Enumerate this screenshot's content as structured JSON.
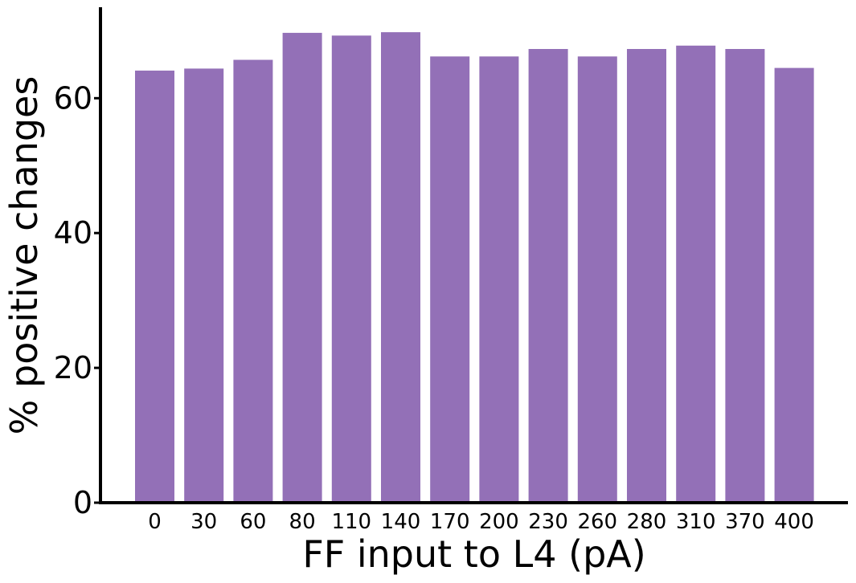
{
  "chart_data": {
    "type": "bar",
    "categories": [
      "0",
      "30",
      "60",
      "80",
      "110",
      "140",
      "170",
      "200",
      "230",
      "260",
      "280",
      "310",
      "370",
      "400"
    ],
    "values": [
      64.1,
      64.4,
      65.7,
      69.7,
      69.3,
      69.8,
      66.2,
      66.2,
      67.3,
      66.2,
      67.3,
      67.8,
      67.3,
      64.5
    ],
    "xlabel": "FF input to L4 (pA)",
    "ylabel": "% positive changes",
    "ylim": [
      0,
      73.5
    ],
    "yticks": [
      0,
      20,
      40,
      60
    ],
    "bar_color": "#9370b7",
    "grid": false
  }
}
